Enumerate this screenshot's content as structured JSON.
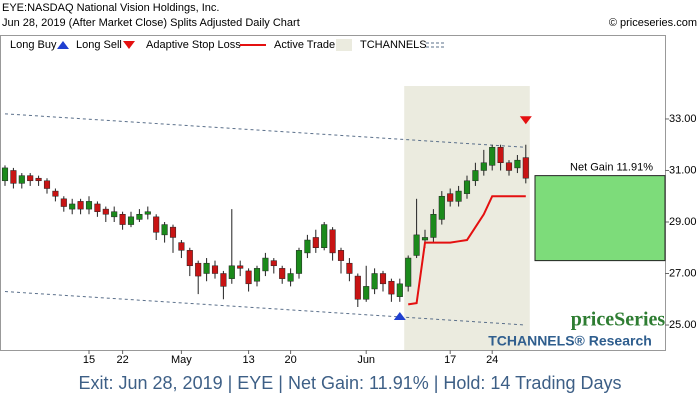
{
  "chart_data": {
    "type": "candlestick",
    "title": "EYE:NASDAQ National Vision Holdings, Inc.",
    "subtitle": "Jun 28, 2019 (After Market Close)  Splits Adjusted Daily Chart",
    "copyright": "© priceseries.com",
    "watermark": "priceSeries",
    "watermark_sub": "TCHANNELS® Research",
    "categories": [
      null,
      null,
      null,
      null,
      null,
      null,
      null,
      null,
      null,
      null,
      "15",
      null,
      null,
      null,
      "22",
      null,
      null,
      null,
      null,
      null,
      null,
      "May",
      null,
      null,
      null,
      null,
      null,
      null,
      null,
      "13",
      null,
      null,
      null,
      null,
      "20",
      null,
      null,
      null,
      null,
      null,
      null,
      null,
      null,
      "Jun",
      null,
      null,
      null,
      null,
      null,
      null,
      null,
      null,
      null,
      "17",
      null,
      null,
      null,
      null,
      "24",
      null,
      null,
      null,
      null
    ],
    "open": [
      30.6,
      31.0,
      30.5,
      30.8,
      30.7,
      30.6,
      30.2,
      29.9,
      29.5,
      29.8,
      29.5,
      29.7,
      29.5,
      29.2,
      29.3,
      28.9,
      29.1,
      29.3,
      29.2,
      28.5,
      28.8,
      28.2,
      27.9,
      27.4,
      27.0,
      27.3,
      27.0,
      26.8,
      27.3,
      27.1,
      26.7,
      27.1,
      27.5,
      27.2,
      26.7,
      27.0,
      27.8,
      28.4,
      28.0,
      28.7,
      27.9,
      27.4,
      26.9,
      26.0,
      26.4,
      27.0,
      26.7,
      26.1,
      26.5,
      27.7,
      28.3,
      28.4,
      29.1,
      30.1,
      29.8,
      30.1,
      30.6,
      31.0,
      31.2,
      31.9,
      31.3,
      31.1,
      31.5
    ],
    "high": [
      31.2,
      31.1,
      30.9,
      30.9,
      30.8,
      30.7,
      30.3,
      30.0,
      29.9,
      29.9,
      30.0,
      29.8,
      29.6,
      29.6,
      29.4,
      29.4,
      29.5,
      29.6,
      29.3,
      29.0,
      28.9,
      28.3,
      28.0,
      27.5,
      27.6,
      27.5,
      27.1,
      29.5,
      27.5,
      27.2,
      27.3,
      27.8,
      27.6,
      27.3,
      27.2,
      28.0,
      28.5,
      28.7,
      29.0,
      28.8,
      28.0,
      27.6,
      27.0,
      27.3,
      27.2,
      27.1,
      26.8,
      26.8,
      27.7,
      29.9,
      28.7,
      29.5,
      30.2,
      30.3,
      30.4,
      30.8,
      31.3,
      31.8,
      32.0,
      32.0,
      31.4,
      31.6,
      32.0
    ],
    "low": [
      30.4,
      30.3,
      30.3,
      30.4,
      30.4,
      30.1,
      29.8,
      29.4,
      29.3,
      29.3,
      29.3,
      29.2,
      29.0,
      29.0,
      28.7,
      28.8,
      29.0,
      29.1,
      28.3,
      28.2,
      27.8,
      27.6,
      26.9,
      26.2,
      26.7,
      26.8,
      26.0,
      26.6,
      26.9,
      26.3,
      26.5,
      26.9,
      27.0,
      26.6,
      26.5,
      26.8,
      27.6,
      27.8,
      27.9,
      27.5,
      27.0,
      26.7,
      25.7,
      25.9,
      26.2,
      26.3,
      25.9,
      25.9,
      26.3,
      27.6,
      28.0,
      28.2,
      28.9,
      29.6,
      29.6,
      29.9,
      30.4,
      30.8,
      31.0,
      31.0,
      30.8,
      30.9,
      30.5
    ],
    "close": [
      31.1,
      30.5,
      30.8,
      30.6,
      30.6,
      30.3,
      30.0,
      29.6,
      29.7,
      29.5,
      29.8,
      29.4,
      29.3,
      29.4,
      28.9,
      29.2,
      29.3,
      29.4,
      28.6,
      28.9,
      28.4,
      27.9,
      27.3,
      26.9,
      27.4,
      27.0,
      26.5,
      27.3,
      27.2,
      26.6,
      27.2,
      27.6,
      27.3,
      26.8,
      27.0,
      27.9,
      28.3,
      28.0,
      28.9,
      27.8,
      27.5,
      27.0,
      26.0,
      26.5,
      27.0,
      26.6,
      26.2,
      26.6,
      27.6,
      28.5,
      28.4,
      29.3,
      30.0,
      29.8,
      30.2,
      30.6,
      31.0,
      31.3,
      31.9,
      31.3,
      31.0,
      31.4,
      30.7
    ],
    "up_color": "#1b8a1b",
    "down_color": "#c81414",
    "stop_loss": {
      "x": [
        48,
        49,
        50,
        51,
        52,
        53,
        54,
        55,
        56,
        57,
        58,
        59,
        60,
        61,
        62
      ],
      "values": [
        25.8,
        25.85,
        28.2,
        28.2,
        28.2,
        28.2,
        28.25,
        28.3,
        28.8,
        29.3,
        30.0,
        30.0,
        30.0,
        30.0,
        30.0
      ],
      "color": "#e41010"
    },
    "channel": {
      "x": [
        0,
        62
      ],
      "upper": [
        33.2,
        31.9
      ],
      "lower": [
        26.3,
        25.0
      ],
      "color": "#5a6f8a"
    },
    "active_trade": {
      "x": [
        48,
        62
      ],
      "color": "#ebebdf"
    },
    "buy": {
      "x": 47,
      "value": 25.35,
      "color": "#1f3fd0"
    },
    "sell": {
      "x": 62,
      "value": 32.95,
      "color": "#e41010"
    },
    "net_gain": {
      "label": "Net Gain 11.91%",
      "entry": 27.5,
      "exit": 30.8,
      "color": "#7ddc7a"
    },
    "legend": [
      {
        "name": "Long Buy"
      },
      {
        "name": "Long Sell"
      },
      {
        "name": "Adaptive Stop Loss"
      },
      {
        "name": "Active Trade"
      },
      {
        "name": "TCHANNELS"
      }
    ],
    "ylim": [
      24.03,
      36.26
    ],
    "yticks": [
      {
        "value": 25,
        "label": "25.00"
      },
      {
        "value": 27,
        "label": "27.00"
      },
      {
        "value": 29,
        "label": "29.00"
      },
      {
        "value": 31,
        "label": "31.00"
      },
      {
        "value": 33,
        "label": "33.00"
      }
    ]
  },
  "footer": "Exit: Jun 28, 2019 | EYE | Net Gain: 11.91% | Hold: 14 Trading Days"
}
